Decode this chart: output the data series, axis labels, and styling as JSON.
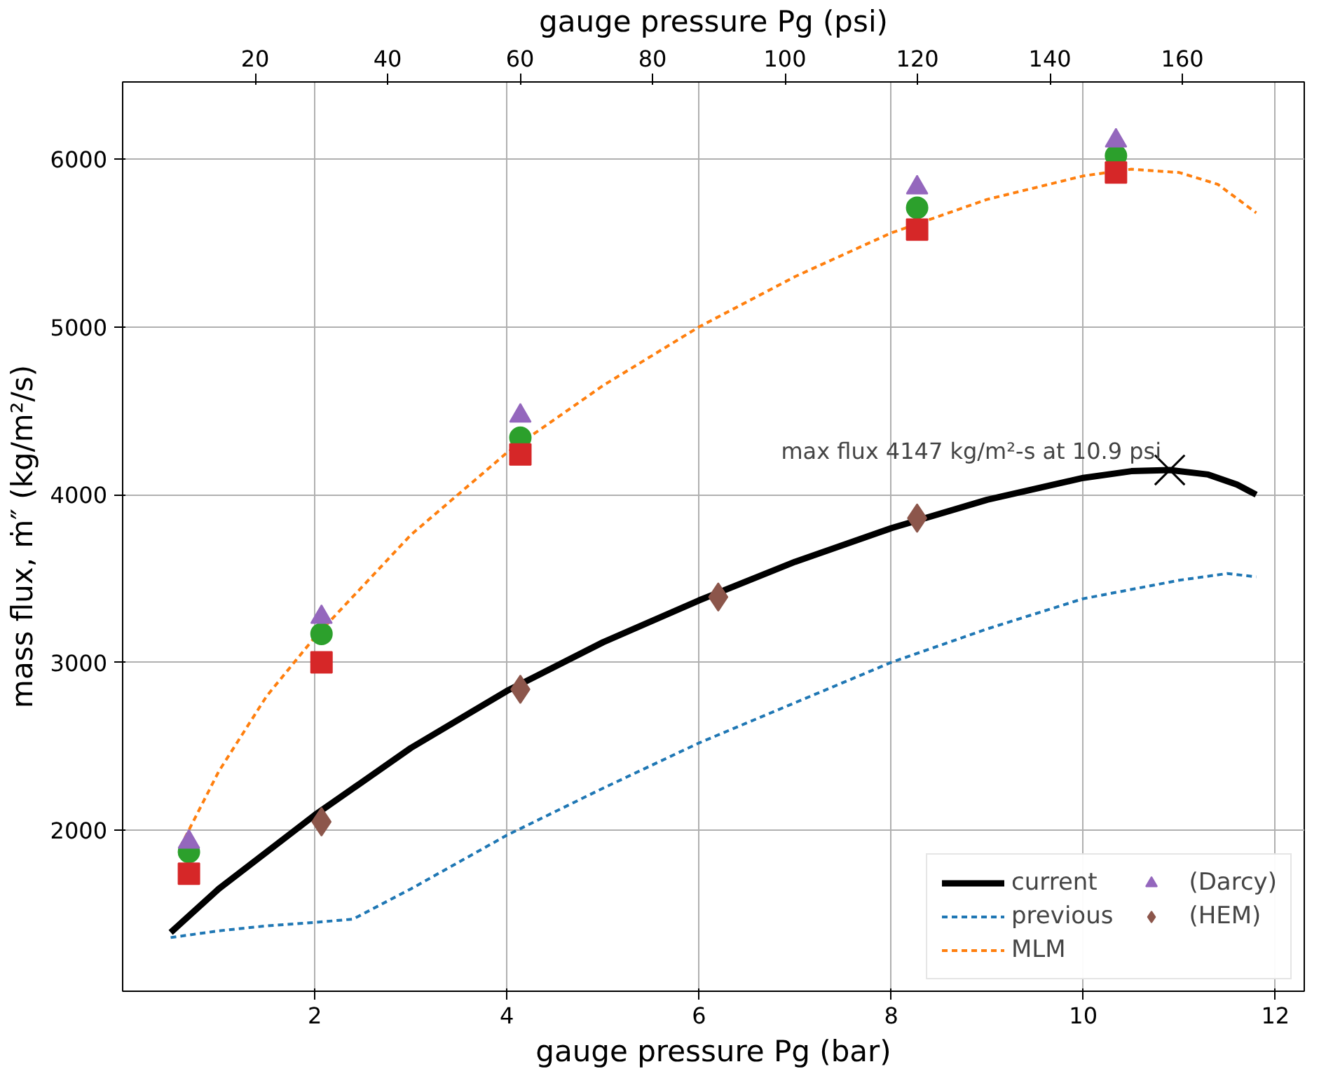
{
  "chart_data": {
    "type": "line",
    "xlabel": "gauge pressure Pg (bar)",
    "ylabel": "mass flux, ṁ″ (kg/m²/s)",
    "x2label": "gauge pressure Pg (psi)",
    "xlim": [
      0,
      12.3
    ],
    "xticks": [
      2,
      4,
      6,
      8,
      10,
      12
    ],
    "x2lim": [
      0,
      178.4
    ],
    "x2ticks": [
      20,
      40,
      60,
      80,
      100,
      120,
      140,
      160
    ],
    "ylim": [
      1040,
      6460
    ],
    "yticks": [
      2000,
      3000,
      4000,
      5000,
      6000
    ],
    "grid": true,
    "legend": "bottom right",
    "annotations": [
      {
        "text": "max flux 4147 kg/m²-s at 10.9 psi",
        "x": 10.9,
        "y": 4147
      }
    ],
    "series": [
      {
        "name": "current",
        "line_style": "solid",
        "color": "#000000",
        "x": [
          0.5,
          1,
          2,
          3,
          4,
          5,
          6,
          7,
          8,
          9,
          10,
          10.5,
          10.9,
          11.3,
          11.6,
          11.8
        ],
        "values": [
          1390,
          1650,
          2090,
          2490,
          2830,
          3120,
          3370,
          3600,
          3800,
          3970,
          4100,
          4140,
          4147,
          4120,
          4060,
          4000
        ]
      },
      {
        "name": "previous",
        "line_style": "dashed",
        "color": "#1f77b4",
        "x": [
          0.5,
          1,
          1.5,
          2,
          2.4,
          3,
          4,
          5,
          6,
          7,
          8,
          9,
          10,
          11,
          11.5,
          11.8
        ],
        "values": [
          1360,
          1400,
          1430,
          1450,
          1470,
          1650,
          1970,
          2250,
          2520,
          2760,
          3000,
          3200,
          3380,
          3490,
          3530,
          3510
        ]
      },
      {
        "name": "MLM",
        "line_style": "dashed",
        "color": "#ff7f0e",
        "x": [
          0.6,
          1,
          1.5,
          2,
          3,
          4,
          5,
          6,
          7,
          8,
          9,
          10,
          10.5,
          11,
          11.4,
          11.8
        ],
        "values": [
          1900,
          2350,
          2800,
          3150,
          3760,
          4250,
          4650,
          5000,
          5300,
          5560,
          5760,
          5900,
          5940,
          5920,
          5850,
          5680
        ]
      },
      {
        "type": "scatter",
        "marker": "circle",
        "color": "#2ca02c",
        "x": [
          0.69,
          2.07,
          4.14,
          8.27,
          10.34
        ],
        "values": [
          1870,
          3170,
          4340,
          5710,
          6020
        ]
      },
      {
        "type": "scatter",
        "marker": "square",
        "color": "#d62728",
        "x": [
          0.69,
          2.07,
          4.14,
          8.27,
          10.34
        ],
        "values": [
          1740,
          3000,
          4240,
          5580,
          5920
        ]
      },
      {
        "name": "(Darcy)",
        "type": "scatter",
        "marker": "triangle",
        "color": "#9467bd",
        "x": [
          0.69,
          2.07,
          4.14,
          8.27,
          10.34
        ],
        "values": [
          1930,
          3270,
          4470,
          5830,
          6110
        ]
      },
      {
        "name": "(HEM)",
        "type": "scatter",
        "marker": "diamond",
        "color": "#8c564b",
        "x": [
          2.07,
          4.14,
          6.2,
          8.27
        ],
        "values": [
          2050,
          2840,
          3390,
          3860
        ]
      },
      {
        "type": "scatter",
        "marker": "cross",
        "color": "#000000",
        "x": [
          10.9
        ],
        "values": [
          4147
        ]
      }
    ]
  }
}
